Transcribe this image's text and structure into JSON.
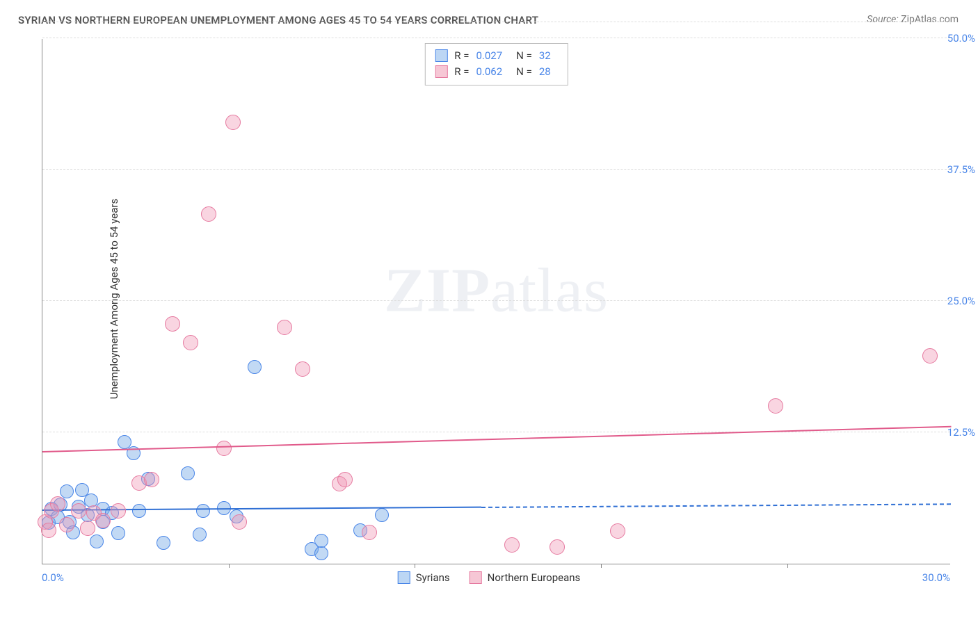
{
  "title": "SYRIAN VS NORTHERN EUROPEAN UNEMPLOYMENT AMONG AGES 45 TO 54 YEARS CORRELATION CHART",
  "source_label": "Source:",
  "source_value": "ZipAtlas.com",
  "y_axis_title": "Unemployment Among Ages 45 to 54 years",
  "watermark_bold": "ZIP",
  "watermark_rest": "atlas",
  "x_range": [
    0,
    30
  ],
  "y_range": [
    0,
    50
  ],
  "x_axis_min_label": "0.0%",
  "x_axis_max_label": "30.0%",
  "y_ticks": [
    {
      "value": 12.5,
      "label": "12.5%"
    },
    {
      "value": 25.0,
      "label": "25.0%"
    },
    {
      "value": 37.5,
      "label": "37.5%"
    },
    {
      "value": 50.0,
      "label": "50.0%"
    }
  ],
  "extra_gridline_y": 51.5,
  "x_tick_positions": [
    6.15,
    12.3,
    18.45,
    24.6
  ],
  "series": [
    {
      "key": "syrians",
      "label": "Syrians",
      "fill": "rgba(120,170,230,0.45)",
      "stroke": "#4a86e8",
      "swatch_fill": "#bcd6f4",
      "swatch_border": "#4a86e8",
      "point_r": 10,
      "trend": {
        "y_start": 5.0,
        "y_end": 5.6,
        "solid_until_x": 14.5,
        "color": "#2f6fd4"
      },
      "stats": {
        "r_label": "R =",
        "r_value": "0.027",
        "n_label": "N =",
        "n_value": "32"
      },
      "points": [
        {
          "x": 0.2,
          "y": 3.9
        },
        {
          "x": 0.3,
          "y": 5.2
        },
        {
          "x": 0.5,
          "y": 4.4
        },
        {
          "x": 0.6,
          "y": 5.6
        },
        {
          "x": 0.8,
          "y": 6.9
        },
        {
          "x": 0.9,
          "y": 4.0
        },
        {
          "x": 1.0,
          "y": 3.0
        },
        {
          "x": 1.2,
          "y": 5.4
        },
        {
          "x": 1.3,
          "y": 7.0
        },
        {
          "x": 1.5,
          "y": 4.6
        },
        {
          "x": 1.6,
          "y": 6.0
        },
        {
          "x": 1.8,
          "y": 2.1
        },
        {
          "x": 2.0,
          "y": 4.0
        },
        {
          "x": 2.0,
          "y": 5.2
        },
        {
          "x": 2.3,
          "y": 4.8
        },
        {
          "x": 2.5,
          "y": 2.9
        },
        {
          "x": 2.7,
          "y": 11.6
        },
        {
          "x": 3.0,
          "y": 10.5
        },
        {
          "x": 3.2,
          "y": 5.0
        },
        {
          "x": 3.5,
          "y": 8.1
        },
        {
          "x": 4.0,
          "y": 2.0
        },
        {
          "x": 4.8,
          "y": 8.6
        },
        {
          "x": 5.2,
          "y": 2.8
        },
        {
          "x": 5.3,
          "y": 5.0
        },
        {
          "x": 6.0,
          "y": 5.3
        },
        {
          "x": 6.4,
          "y": 4.5
        },
        {
          "x": 7.0,
          "y": 18.7
        },
        {
          "x": 8.9,
          "y": 1.4
        },
        {
          "x": 9.2,
          "y": 1.0
        },
        {
          "x": 9.2,
          "y": 2.2
        },
        {
          "x": 10.5,
          "y": 3.2
        },
        {
          "x": 11.2,
          "y": 4.6
        }
      ]
    },
    {
      "key": "northern_europeans",
      "label": "Northern Europeans",
      "fill": "rgba(240,150,180,0.40)",
      "stroke": "#e67aa0",
      "swatch_fill": "#f6c7d5",
      "swatch_border": "#e67aa0",
      "point_r": 11,
      "trend": {
        "y_start": 10.6,
        "y_end": 13.0,
        "solid_until_x": 30,
        "color": "#e15b8b"
      },
      "stats": {
        "r_label": "R =",
        "r_value": "0.062",
        "n_label": "N =",
        "n_value": "28"
      },
      "points": [
        {
          "x": 0.1,
          "y": 4.0
        },
        {
          "x": 0.2,
          "y": 3.2
        },
        {
          "x": 0.3,
          "y": 5.0
        },
        {
          "x": 0.5,
          "y": 5.7
        },
        {
          "x": 0.8,
          "y": 3.7
        },
        {
          "x": 1.2,
          "y": 5.0
        },
        {
          "x": 1.5,
          "y": 3.4
        },
        {
          "x": 1.7,
          "y": 4.8
        },
        {
          "x": 2.0,
          "y": 4.1
        },
        {
          "x": 2.5,
          "y": 5.0
        },
        {
          "x": 3.2,
          "y": 7.7
        },
        {
          "x": 3.6,
          "y": 8.0
        },
        {
          "x": 4.3,
          "y": 22.8
        },
        {
          "x": 4.9,
          "y": 21.0
        },
        {
          "x": 5.5,
          "y": 33.3
        },
        {
          "x": 6.0,
          "y": 11.0
        },
        {
          "x": 6.3,
          "y": 42.0
        },
        {
          "x": 6.5,
          "y": 4.0
        },
        {
          "x": 8.0,
          "y": 22.5
        },
        {
          "x": 8.6,
          "y": 18.5
        },
        {
          "x": 9.8,
          "y": 7.6
        },
        {
          "x": 10.0,
          "y": 8.0
        },
        {
          "x": 10.8,
          "y": 3.0
        },
        {
          "x": 15.5,
          "y": 1.8
        },
        {
          "x": 17.0,
          "y": 1.6
        },
        {
          "x": 19.0,
          "y": 3.1
        },
        {
          "x": 24.2,
          "y": 15.0
        },
        {
          "x": 29.3,
          "y": 19.8
        }
      ]
    }
  ]
}
